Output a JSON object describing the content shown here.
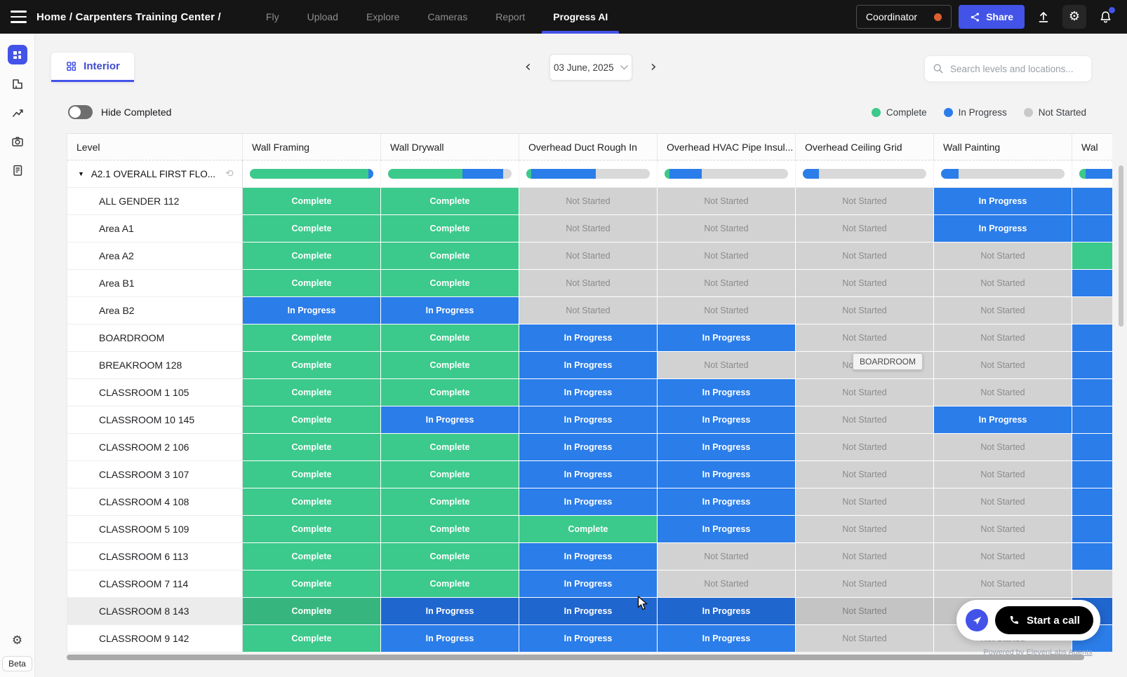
{
  "app": {
    "accent_color": "#4353e8"
  },
  "topbar": {
    "breadcrumb": "Home / Carpenters Training Center /",
    "nav": [
      {
        "label": "Fly"
      },
      {
        "label": "Upload"
      },
      {
        "label": "Explore"
      },
      {
        "label": "Cameras"
      },
      {
        "label": "Report"
      },
      {
        "label": "Progress AI",
        "active": true
      }
    ],
    "coordinator_label": "Coordinator",
    "share_label": "Share"
  },
  "sidebar": {
    "beta_label": "Beta"
  },
  "tabs": {
    "interior_label": "Interior"
  },
  "date_nav": {
    "current_date": "03 June, 2025"
  },
  "search": {
    "placeholder": "Search levels and locations..."
  },
  "filters": {
    "hide_completed_label": "Hide Completed",
    "enabled": false
  },
  "legend": [
    {
      "label": "Complete",
      "color": "#3cc98c"
    },
    {
      "label": "In Progress",
      "color": "#2b7de9"
    },
    {
      "label": "Not Started",
      "color": "#c9c9c9"
    }
  ],
  "status_labels": {
    "complete": "Complete",
    "in_progress": "In Progress",
    "not_started": "Not Started"
  },
  "status_colors": {
    "complete": "#3cc98c",
    "in_progress": "#2b7de9",
    "not_started": "#d2d2d2"
  },
  "table": {
    "columns": [
      "Level",
      "Wall Framing",
      "Wall Drywall",
      "Overhead Duct Rough In",
      "Overhead HVAC Pipe Insul...",
      "Overhead Ceiling Grid",
      "Wall Painting",
      "Wal"
    ],
    "summary": {
      "label": "A2.1 OVERALL FIRST FLO...",
      "bars": [
        [
          96,
          4
        ],
        [
          60,
          33
        ],
        [
          4,
          52
        ],
        [
          4,
          26
        ],
        [
          0,
          13
        ],
        [
          0,
          14
        ],
        [
          5,
          95
        ]
      ]
    },
    "rows": [
      {
        "label": "ALL GENDER 112",
        "statuses": [
          "complete",
          "complete",
          "not_started",
          "not_started",
          "not_started",
          "in_progress",
          "in_progress"
        ]
      },
      {
        "label": "Area A1",
        "statuses": [
          "complete",
          "complete",
          "not_started",
          "not_started",
          "not_started",
          "in_progress",
          "in_progress"
        ]
      },
      {
        "label": "Area A2",
        "statuses": [
          "complete",
          "complete",
          "not_started",
          "not_started",
          "not_started",
          "not_started",
          "complete"
        ]
      },
      {
        "label": "Area B1",
        "statuses": [
          "complete",
          "complete",
          "not_started",
          "not_started",
          "not_started",
          "not_started",
          "in_progress"
        ]
      },
      {
        "label": "Area B2",
        "statuses": [
          "in_progress",
          "in_progress",
          "not_started",
          "not_started",
          "not_started",
          "not_started",
          "not_started"
        ]
      },
      {
        "label": "BOARDROOM",
        "statuses": [
          "complete",
          "complete",
          "in_progress",
          "in_progress",
          "not_started",
          "not_started",
          "in_progress"
        ]
      },
      {
        "label": "BREAKROOM 128",
        "statuses": [
          "complete",
          "complete",
          "in_progress",
          "not_started",
          "not_started",
          "not_started",
          "in_progress"
        ]
      },
      {
        "label": "CLASSROOM 1 105",
        "statuses": [
          "complete",
          "complete",
          "in_progress",
          "in_progress",
          "not_started",
          "not_started",
          "in_progress"
        ]
      },
      {
        "label": "CLASSROOM 10 145",
        "statuses": [
          "complete",
          "in_progress",
          "in_progress",
          "in_progress",
          "not_started",
          "in_progress",
          "in_progress"
        ]
      },
      {
        "label": "CLASSROOM 2 106",
        "statuses": [
          "complete",
          "complete",
          "in_progress",
          "in_progress",
          "not_started",
          "not_started",
          "in_progress"
        ]
      },
      {
        "label": "CLASSROOM 3 107",
        "statuses": [
          "complete",
          "complete",
          "in_progress",
          "in_progress",
          "not_started",
          "not_started",
          "in_progress"
        ]
      },
      {
        "label": "CLASSROOM 4 108",
        "statuses": [
          "complete",
          "complete",
          "in_progress",
          "in_progress",
          "not_started",
          "not_started",
          "in_progress"
        ]
      },
      {
        "label": "CLASSROOM 5 109",
        "statuses": [
          "complete",
          "complete",
          "complete",
          "in_progress",
          "not_started",
          "not_started",
          "in_progress"
        ]
      },
      {
        "label": "CLASSROOM 6 113",
        "statuses": [
          "complete",
          "complete",
          "in_progress",
          "not_started",
          "not_started",
          "not_started",
          "in_progress"
        ]
      },
      {
        "label": "CLASSROOM 7 114",
        "statuses": [
          "complete",
          "complete",
          "in_progress",
          "not_started",
          "not_started",
          "not_started",
          "not_started"
        ]
      },
      {
        "label": "CLASSROOM 8 143",
        "hover": true,
        "statuses": [
          "complete",
          "in_progress",
          "in_progress",
          "in_progress",
          "not_started",
          "not_started",
          "in_progress"
        ]
      },
      {
        "label": "CLASSROOM 9 142",
        "statuses": [
          "complete",
          "in_progress",
          "in_progress",
          "in_progress",
          "not_started",
          "not_started",
          "in_progress"
        ]
      }
    ]
  },
  "tooltip": {
    "text": "BOARDROOM"
  },
  "call_widget": {
    "call_label": "Start a call",
    "powered_by_prefix": "Powered by ElevenLabs",
    "powered_by_link": "Agents"
  },
  "icons": {
    "triangle_down": "▼",
    "history": "⟲",
    "gear": "⚙",
    "chevron_left": "‹",
    "chevron_right": "›"
  }
}
